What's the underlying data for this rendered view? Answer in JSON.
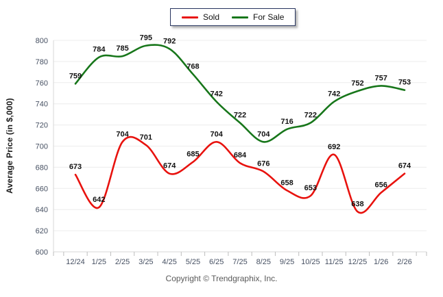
{
  "legend": {
    "items": [
      {
        "label": "Sold",
        "color": "#e8120e"
      },
      {
        "label": "For Sale",
        "color": "#17761a"
      }
    ]
  },
  "y_axis_title": "Average Price (in $,000)",
  "copyright": "Copyright © Trendgraphix, Inc.",
  "chart_data": {
    "type": "line",
    "title": "",
    "xlabel": "",
    "ylabel": "Average Price (in $,000)",
    "categories": [
      "12/24",
      "1/25",
      "2/25",
      "3/25",
      "4/25",
      "5/25",
      "6/25",
      "7/25",
      "8/25",
      "9/25",
      "10/25",
      "11/25",
      "12/25",
      "1/26",
      "2/26"
    ],
    "series": [
      {
        "name": "Sold",
        "color": "#e8120e",
        "values": [
          673,
          642,
          704,
          701,
          674,
          685,
          704,
          684,
          676,
          658,
          653,
          692,
          638,
          656,
          674
        ]
      },
      {
        "name": "For Sale",
        "color": "#17761a",
        "values": [
          759,
          784,
          785,
          795,
          792,
          768,
          742,
          722,
          704,
          716,
          722,
          742,
          752,
          757,
          753
        ]
      }
    ],
    "ylim": [
      600,
      800
    ],
    "ytick_step": 20,
    "grid": true,
    "smooth": true,
    "point_labels": true,
    "legend_position": "top-center"
  }
}
